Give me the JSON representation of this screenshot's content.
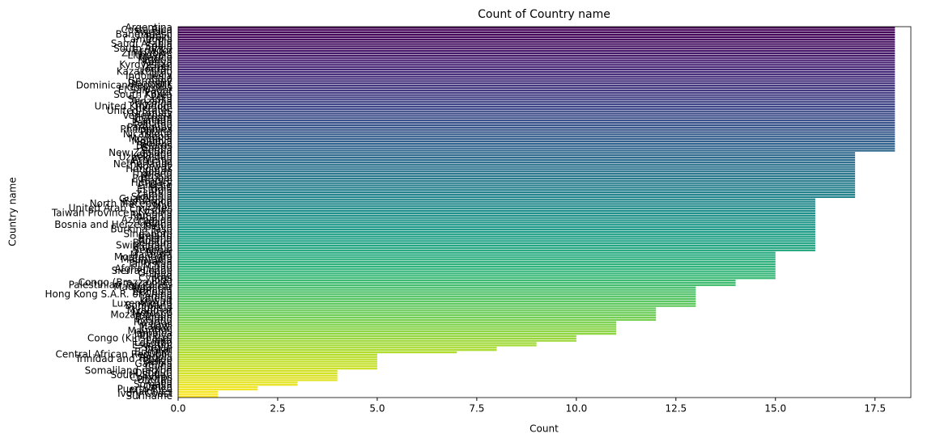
{
  "chart_data": {
    "type": "barh",
    "title": "Count of Country name",
    "xlabel": "Count",
    "ylabel": "Country name",
    "colormap": "viridis",
    "categories": [
      "Argentina",
      "Costa Rica",
      "Sweden",
      "Bangladesh",
      "Brazil",
      "Cambodia",
      "Chile",
      "Saudi Arabia",
      "Spain",
      "South Africa",
      "Ecuador",
      "Zimbabwe",
      "Lithuania",
      "Mexico",
      "Nigeria",
      "Kenya",
      "Kyrgyzstan",
      "Israel",
      "Jordan",
      "Kazakhstan",
      "Italy",
      "Indonesia",
      "India",
      "Germany",
      "Denmark",
      "Dominican Republic",
      "Colombia",
      "El Salvador",
      "Egypt",
      "South Korea",
      "Peru",
      "Sri Lanka",
      "Tanzania",
      "Uganda",
      "United Kingdom",
      "Ukraine",
      "United States",
      "Uruguay",
      "Venezuela",
      "Vietnam",
      "Canada",
      "Pakistan",
      "Panama",
      "Paraguay",
      "Philippines",
      "Poland",
      "Nicaragua",
      "Nepal",
      "Mongolia",
      "Moldova",
      "Bolivia",
      "Belarus",
      "Ghana",
      "Serbia",
      "New Zealand",
      "Lebanon",
      "Uzbekistan",
      "Armenia",
      "Australia",
      "Netherlands",
      "Norway",
      "Honduras",
      "Japan",
      "Thailand",
      "Russia",
      "Portugal",
      "France",
      "Hungary",
      "Greece",
      "Haiti",
      "Estonia",
      "Latvia",
      "Zambia",
      "Slovenia",
      "Guatemala",
      "Cameroon",
      "North Macedonia",
      "Mali",
      "United Arab Emirates",
      "Kosovo",
      "Taiwan Province of China",
      "Romania",
      "Albania",
      "Azerbaijan",
      "Croatia",
      "Bosnia and Herzegovina",
      "Benin",
      "Burkina Faso",
      "Iran",
      "Singapore",
      "Ireland",
      "Finland",
      "Austria",
      "Belgium",
      "Switzerland",
      "Bulgaria",
      "Senegal",
      "Niger",
      "Malaysia",
      "Montenegro",
      "Mauritania",
      "Slovakia",
      "Tajikistan",
      "Chad",
      "Afghanistan",
      "Sierra Leone",
      "Guinea",
      "Iraq",
      "Cyprus",
      "Togo",
      "Congo (Brazzaville)",
      "Palestinian Territories",
      "Madagascar",
      "Namibia",
      "Ethiopia",
      "Hong Kong S.A.R. of China",
      "Yemen",
      "Liberia",
      "Kuwait",
      "Luxembourg",
      "Botswana",
      "Tunisia",
      "Myanmar",
      "Morocco",
      "Mozambique",
      "Bahrain",
      "Iceland",
      "Rwanda",
      "Laos",
      "Malawi",
      "Gabon",
      "Mauritius",
      "Jamaica",
      "Turkiye",
      "Congo (Kinshasa)",
      "Libya",
      "Lesotho",
      "Eswatini",
      "Sudan",
      "Qatar",
      "Burundi",
      "Central African Republic",
      "Angola",
      "Trinidad and Tobago",
      "Belize",
      "Gambia",
      "China",
      "Syria",
      "Somaliland region",
      "Djibouti",
      "South Sudan",
      "Comoros",
      "Bhutan",
      "Cuba",
      "Somalia",
      "Oman",
      "Puerto Rico",
      "Maldives",
      "Ivory Coast",
      "Suriname"
    ],
    "values": [
      18,
      18,
      18,
      18,
      18,
      18,
      18,
      18,
      18,
      18,
      18,
      18,
      18,
      18,
      18,
      18,
      18,
      18,
      18,
      18,
      18,
      18,
      18,
      18,
      18,
      18,
      18,
      18,
      18,
      18,
      18,
      18,
      18,
      18,
      18,
      18,
      18,
      18,
      18,
      18,
      18,
      18,
      18,
      18,
      18,
      18,
      18,
      18,
      18,
      18,
      18,
      18,
      18,
      18,
      17,
      17,
      17,
      17,
      17,
      17,
      17,
      17,
      17,
      17,
      17,
      17,
      17,
      17,
      17,
      17,
      17,
      17,
      17,
      17,
      16,
      16,
      16,
      16,
      16,
      16,
      16,
      16,
      16,
      16,
      16,
      16,
      16,
      16,
      16,
      16,
      16,
      16,
      16,
      16,
      16,
      16,
      16,
      15,
      15,
      15,
      15,
      15,
      15,
      15,
      15,
      15,
      15,
      15,
      15,
      14,
      14,
      14,
      13,
      13,
      13,
      13,
      13,
      13,
      13,
      13,
      13,
      12,
      12,
      12,
      12,
      12,
      12,
      11,
      11,
      11,
      11,
      11,
      11,
      10,
      10,
      10,
      9,
      9,
      8,
      8,
      7,
      5,
      5,
      5,
      5,
      5,
      5,
      5,
      4,
      4,
      4,
      4,
      4,
      3,
      3,
      2,
      2,
      1,
      1,
      1
    ],
    "xlim": [
      0,
      18.4
    ],
    "xticks": [
      {
        "value": 0,
        "label": "0.0"
      },
      2.5,
      {
        "value": 5,
        "label": "5.0"
      },
      7.5,
      {
        "value": 10,
        "label": "10.0"
      },
      12.5,
      {
        "value": 15,
        "label": "15.0"
      },
      17.5
    ]
  }
}
